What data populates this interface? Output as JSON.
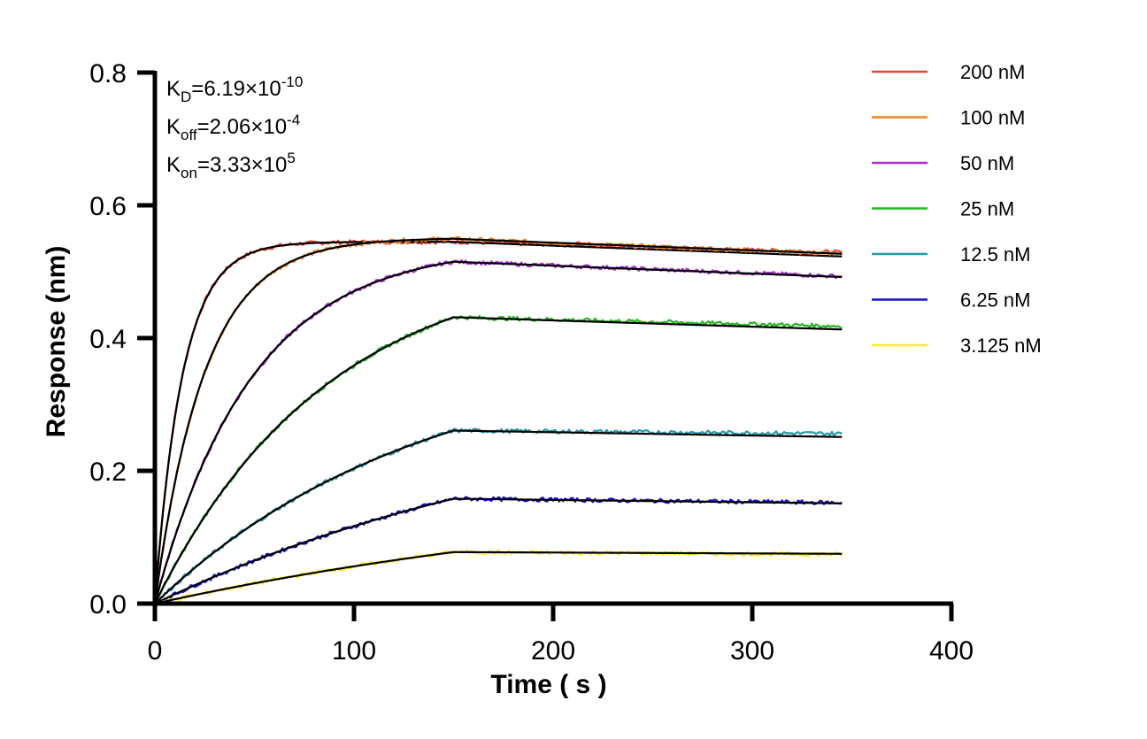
{
  "chart_data": {
    "type": "line",
    "xlabel": "Time ( s )",
    "ylabel": "Response (nm)",
    "xlim": [
      0,
      400
    ],
    "ylim": [
      0,
      0.8
    ],
    "x_ticks": [
      "0",
      "100",
      "200",
      "300",
      "400"
    ],
    "y_ticks": [
      "0.0",
      "0.2",
      "0.4",
      "0.6",
      "0.8"
    ],
    "grid": false,
    "legend_position": "top-right",
    "association_end": 150,
    "time_end": 345,
    "fit_color": "#000000",
    "annotations": [
      {
        "base": "K",
        "sub": "D",
        "eq": "=6.19×10",
        "sup": "-10"
      },
      {
        "base": "K",
        "sub": "off",
        "eq": "=2.06×10",
        "sup": "-4"
      },
      {
        "base": "K",
        "sub": "on",
        "eq": "=3.33×10",
        "sup": "5"
      }
    ],
    "series": [
      {
        "name": "200 nM",
        "color": "#e8453c",
        "kobs": 0.072,
        "plateau": 0.545,
        "dissociation_end": 0.529,
        "fit_end": 0.523
      },
      {
        "name": "100 nM",
        "color": "#f0861b",
        "kobs": 0.04,
        "plateau": 0.551,
        "dissociation_end": 0.527,
        "fit_end": 0.527
      },
      {
        "name": "50 nM",
        "color": "#a92fd6",
        "kobs": 0.0205,
        "plateau": 0.54,
        "dissociation_end": 0.493,
        "fit_end": 0.492
      },
      {
        "name": "25 nM",
        "color": "#22b81f",
        "kobs": 0.0115,
        "plateau": 0.525,
        "dissociation_end": 0.418,
        "fit_end": 0.413
      },
      {
        "name": "12.5 nM",
        "color": "#2499a8",
        "kobs": 0.0075,
        "plateau": 0.386,
        "dissociation_end": 0.256,
        "fit_end": 0.251
      },
      {
        "name": "6.25 nM",
        "color": "#1414d8",
        "kobs": 0.0045,
        "plateau": 0.322,
        "dissociation_end": 0.152,
        "fit_end": 0.151
      },
      {
        "name": "3.125 nM",
        "color": "#ffef1f",
        "kobs": 0.0035,
        "plateau": 0.19,
        "dissociation_end": 0.074,
        "fit_end": 0.075
      }
    ]
  }
}
